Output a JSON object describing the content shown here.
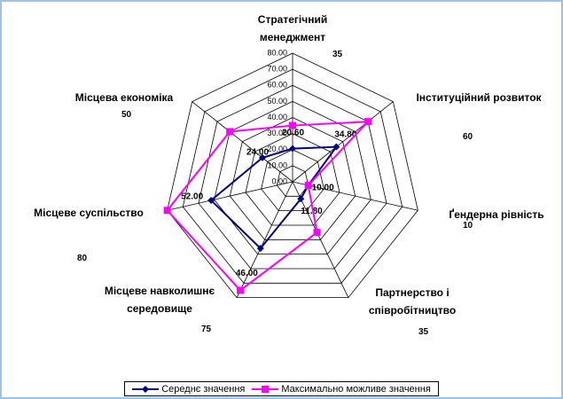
{
  "chart_data": {
    "type": "radar",
    "categories": [
      "Стратегічний менеджмент",
      "Інституційний розвиток",
      "Ґендерна рівність",
      "Партнерство і співробітництво",
      "Місцеве навколишнє середовище",
      "Місцеве суспільство",
      "Місцева економіка"
    ],
    "series": [
      {
        "name": "Середнє значення",
        "color": "#000080",
        "marker": "diamond",
        "values": [
          20.6,
          34.8,
          10,
          11.8,
          46,
          52,
          24
        ],
        "value_labels": [
          "20.60",
          "34.80",
          "10.00",
          "11.80",
          "46.00",
          "52.00",
          "24.00"
        ]
      },
      {
        "name": "Максимально можливе значення",
        "color": "#ff00ff",
        "marker": "square",
        "values": [
          35,
          60,
          10,
          35,
          75,
          80,
          50
        ]
      }
    ],
    "ylim": [
      0,
      80
    ],
    "yticks": [
      {
        "value": 0,
        "label": "0.00"
      },
      {
        "value": 10,
        "label": "10.00"
      },
      {
        "value": 20,
        "label": "20.00"
      },
      {
        "value": 30,
        "label": "30.00"
      },
      {
        "value": 40,
        "label": "40.00"
      },
      {
        "value": 50,
        "label": "50.00"
      },
      {
        "value": 60,
        "label": "60.00"
      },
      {
        "value": 70,
        "label": "70.00"
      },
      {
        "value": 80,
        "label": "80.00"
      }
    ],
    "grid": true,
    "legend": "bottom"
  }
}
